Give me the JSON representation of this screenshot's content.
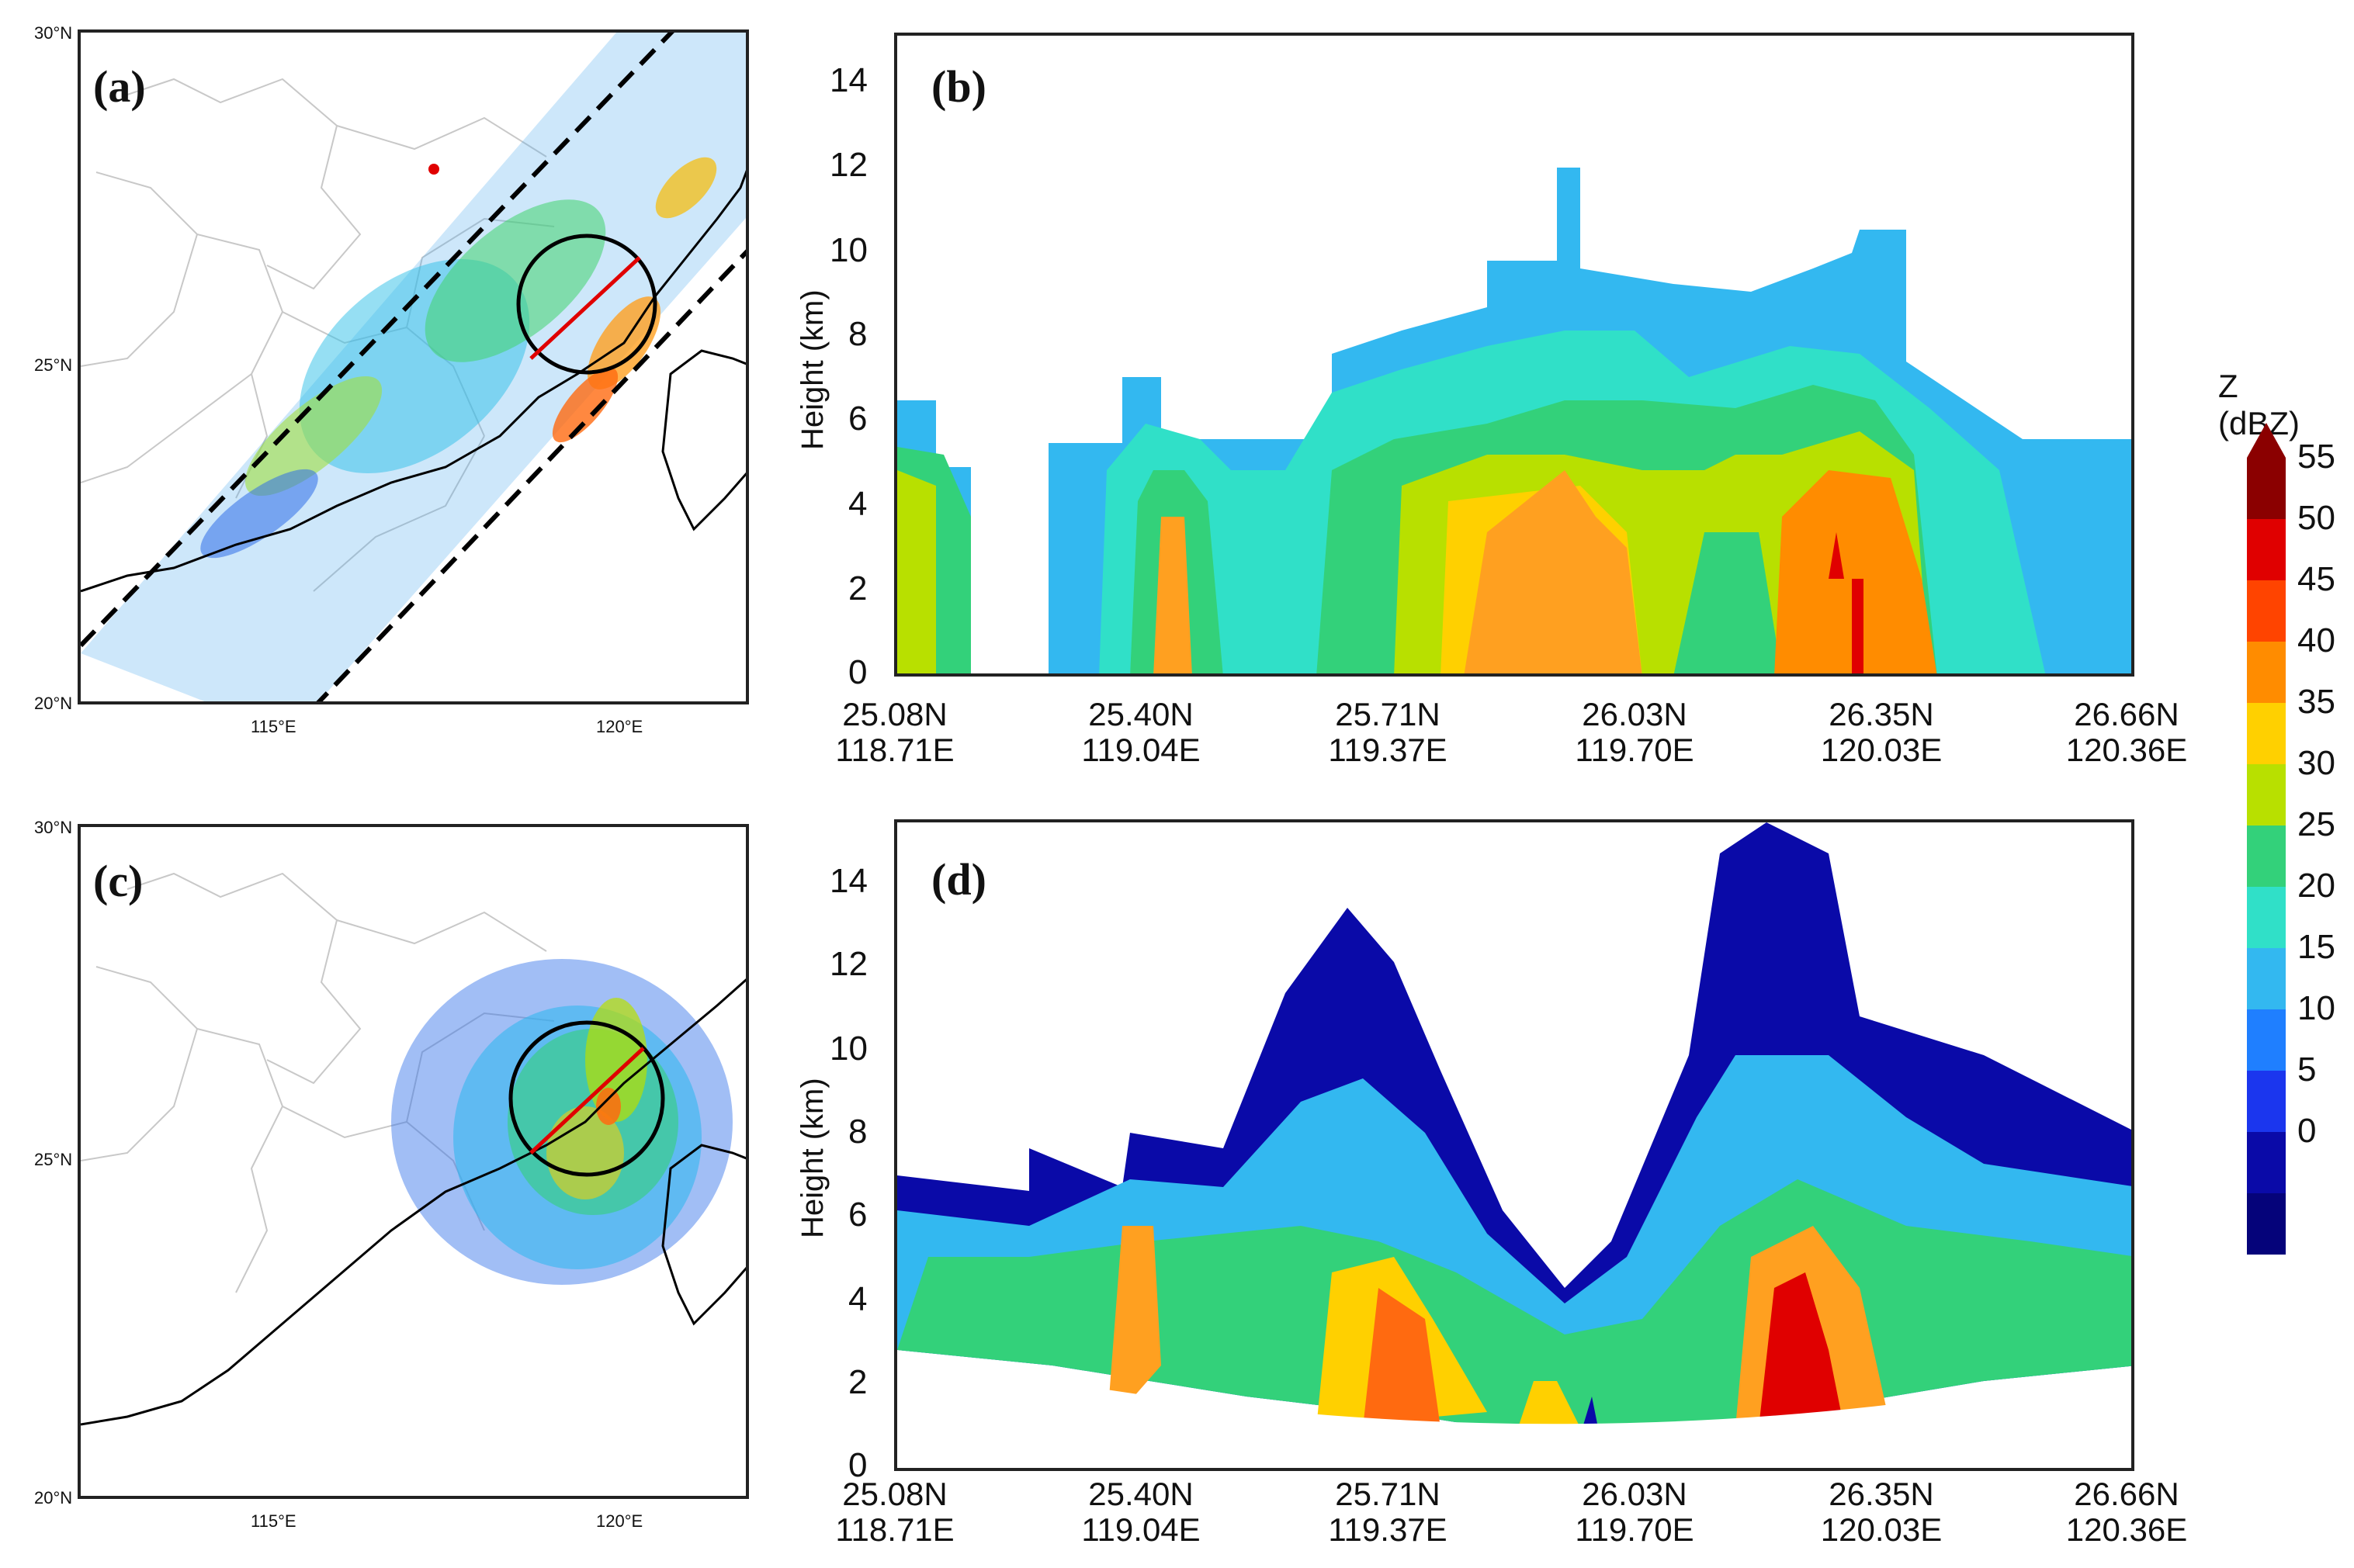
{
  "figure": {
    "panels": {
      "a": {
        "label": "(a)"
      },
      "b": {
        "label": "(b)"
      },
      "c": {
        "label": "(c)"
      },
      "d": {
        "label": "(d)"
      }
    },
    "map_ticks": {
      "lat": [
        "30°N",
        "25°N",
        "20°N"
      ],
      "lon": [
        "115°E",
        "120°E"
      ]
    },
    "section": {
      "ylabel": "Height (km)",
      "yticks": [
        "0",
        "2",
        "4",
        "6",
        "8",
        "10",
        "12",
        "14"
      ],
      "xticks": [
        {
          "lat": "25.08N",
          "lon": "118.71E"
        },
        {
          "lat": "25.40N",
          "lon": "119.04E"
        },
        {
          "lat": "25.71N",
          "lon": "119.37E"
        },
        {
          "lat": "26.03N",
          "lon": "119.70E"
        },
        {
          "lat": "26.35N",
          "lon": "120.03E"
        },
        {
          "lat": "26.66N",
          "lon": "120.36E"
        }
      ]
    },
    "colorbar": {
      "title": "Z (dBZ)",
      "levels": [
        "55",
        "50",
        "45",
        "40",
        "35",
        "30",
        "25",
        "20",
        "15",
        "10",
        "5",
        "0"
      ],
      "colors": [
        "#8b0000",
        "#e00000",
        "#ff4400",
        "#ff8c00",
        "#ffd000",
        "#b8e000",
        "#33d17a",
        "#30e0c8",
        "#33b8f0",
        "#1f7fff",
        "#1b36ee",
        "#0a0aa8",
        "#05037a"
      ]
    }
  },
  "chart_data": [
    {
      "type": "heatmap",
      "panel": "b",
      "title": "",
      "xlabel": "",
      "ylabel": "Height (km)",
      "ylim": [
        0,
        15
      ],
      "xlim": [
        "25.08N 118.71E",
        "26.66N 120.36E"
      ],
      "variable": "Z (dBZ)"
    },
    {
      "type": "heatmap",
      "panel": "d",
      "title": "",
      "xlabel": "",
      "ylabel": "Height (km)",
      "ylim": [
        0,
        15
      ],
      "xlim": [
        "25.08N 118.71E",
        "26.66N 120.36E"
      ],
      "variable": "Z (dBZ)"
    }
  ]
}
